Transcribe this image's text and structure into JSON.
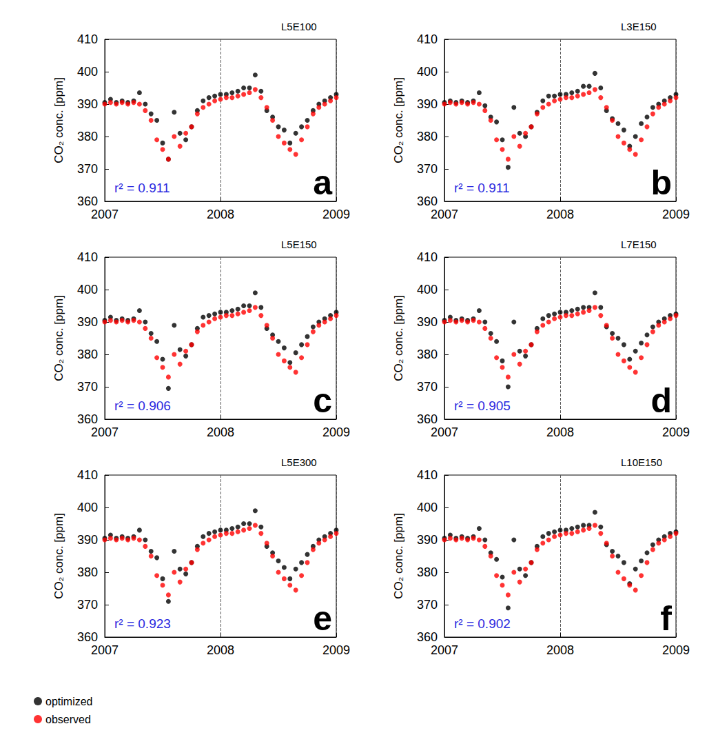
{
  "chart_data": [
    {
      "type": "scatter",
      "title": "L5E100",
      "annotations": {
        "r2": "r² = 0.911",
        "panel": "a"
      },
      "y_label": "CO₂ conc. [ppm]",
      "marker": "circle",
      "grid": "x",
      "xlim": [
        2007,
        2009
      ],
      "xticks": [
        2007,
        2008,
        2009
      ],
      "ylim": [
        360,
        410
      ],
      "yticks": [
        360,
        370,
        380,
        390,
        400,
        410
      ],
      "x": [
        2007.0,
        2007.05,
        2007.1,
        2007.15,
        2007.2,
        2007.25,
        2007.3,
        2007.35,
        2007.4,
        2007.45,
        2007.5,
        2007.55,
        2007.6,
        2007.65,
        2007.7,
        2007.75,
        2007.8,
        2007.85,
        2007.9,
        2007.95,
        2008.0,
        2008.05,
        2008.1,
        2008.15,
        2008.2,
        2008.25,
        2008.3,
        2008.35,
        2008.4,
        2008.45,
        2008.5,
        2008.55,
        2008.6,
        2008.65,
        2008.7,
        2008.75,
        2008.8,
        2008.85,
        2008.9,
        2008.95,
        2009.0
      ],
      "series": [
        {
          "name": "optimized",
          "color": "#000000",
          "values": [
            390.5,
            391.5,
            390.5,
            391,
            390.5,
            391,
            393.5,
            390,
            387,
            385,
            378,
            373,
            387.5,
            381,
            379,
            383,
            388,
            391,
            392,
            392.5,
            393,
            393,
            393.5,
            394,
            395,
            395,
            399,
            394,
            388,
            386,
            383,
            382,
            378,
            381,
            383,
            385,
            388,
            390,
            391,
            392,
            393
          ]
        },
        {
          "name": "observed",
          "color": "#ff0000",
          "values": [
            390,
            390.5,
            390,
            390.5,
            390,
            390.5,
            390,
            388,
            385,
            379,
            376,
            373,
            380,
            377,
            381,
            383,
            387,
            389,
            390,
            391,
            391.5,
            392,
            392,
            392.5,
            393,
            393.5,
            394.5,
            392,
            389,
            385,
            380,
            378,
            376,
            374.5,
            379,
            383,
            387,
            389,
            390,
            391,
            392
          ]
        }
      ]
    },
    {
      "type": "scatter",
      "title": "L3E150",
      "annotations": {
        "r2": "r² = 0.911",
        "panel": "b"
      },
      "y_label": "CO₂ conc. [ppm]",
      "marker": "circle",
      "grid": "x",
      "xlim": [
        2007,
        2009
      ],
      "xticks": [
        2007,
        2008,
        2009
      ],
      "ylim": [
        360,
        410
      ],
      "yticks": [
        360,
        370,
        380,
        390,
        400,
        410
      ],
      "x": [
        2007.0,
        2007.05,
        2007.1,
        2007.15,
        2007.2,
        2007.25,
        2007.3,
        2007.35,
        2007.4,
        2007.45,
        2007.5,
        2007.55,
        2007.6,
        2007.65,
        2007.7,
        2007.75,
        2007.8,
        2007.85,
        2007.9,
        2007.95,
        2008.0,
        2008.05,
        2008.1,
        2008.15,
        2008.2,
        2008.25,
        2008.3,
        2008.35,
        2008.4,
        2008.45,
        2008.5,
        2008.55,
        2008.6,
        2008.65,
        2008.7,
        2008.75,
        2008.8,
        2008.85,
        2008.9,
        2008.95,
        2009.0
      ],
      "series": [
        {
          "name": "optimized",
          "color": "#000000",
          "values": [
            390.5,
            391,
            390.5,
            391,
            390.5,
            391,
            393.5,
            389.5,
            386,
            384.5,
            379,
            370.5,
            389,
            381,
            380,
            383,
            387.5,
            391,
            392.5,
            392.5,
            393,
            393,
            393.5,
            394,
            395.5,
            395.5,
            399.5,
            395,
            388,
            385.5,
            384,
            382,
            377,
            380,
            384,
            386,
            389,
            390,
            391,
            392,
            393
          ]
        },
        {
          "name": "observed",
          "color": "#ff0000",
          "values": [
            390,
            390.5,
            390,
            390.5,
            390,
            390.5,
            390,
            388,
            385,
            379,
            376,
            373,
            380,
            377,
            381,
            383,
            387,
            389,
            390,
            391,
            391.5,
            392,
            392,
            392.5,
            393,
            393.5,
            394.5,
            392,
            389,
            385,
            380,
            378,
            376,
            374.5,
            379,
            383,
            387,
            389,
            390,
            391,
            392
          ]
        }
      ]
    },
    {
      "type": "scatter",
      "title": "L5E150",
      "annotations": {
        "r2": "r² = 0.906",
        "panel": "c"
      },
      "y_label": "CO₂ conc. [ppm]",
      "marker": "circle",
      "grid": "x",
      "xlim": [
        2007,
        2009
      ],
      "xticks": [
        2007,
        2008,
        2009
      ],
      "ylim": [
        360,
        410
      ],
      "yticks": [
        360,
        370,
        380,
        390,
        400,
        410
      ],
      "x": [
        2007.0,
        2007.05,
        2007.1,
        2007.15,
        2007.2,
        2007.25,
        2007.3,
        2007.35,
        2007.4,
        2007.45,
        2007.5,
        2007.55,
        2007.6,
        2007.65,
        2007.7,
        2007.75,
        2007.8,
        2007.85,
        2007.9,
        2007.95,
        2008.0,
        2008.05,
        2008.1,
        2008.15,
        2008.2,
        2008.25,
        2008.3,
        2008.35,
        2008.4,
        2008.45,
        2008.5,
        2008.55,
        2008.6,
        2008.65,
        2008.7,
        2008.75,
        2008.8,
        2008.85,
        2008.9,
        2008.95,
        2009.0
      ],
      "series": [
        {
          "name": "optimized",
          "color": "#000000",
          "values": [
            390.5,
            391.5,
            390.5,
            391,
            390.5,
            391,
            393.5,
            390,
            386.5,
            384,
            378.5,
            369.5,
            389,
            381.5,
            379.5,
            383,
            388,
            391.5,
            392,
            392.5,
            393,
            393,
            393.5,
            394,
            395,
            395,
            399,
            394.5,
            388,
            386,
            384,
            382,
            377.5,
            380.5,
            383,
            385.5,
            388.5,
            390,
            391,
            392,
            393
          ]
        },
        {
          "name": "observed",
          "color": "#ff0000",
          "values": [
            390,
            390.5,
            390,
            390.5,
            390,
            390.5,
            390,
            388,
            385,
            379,
            376,
            373,
            380,
            377,
            381,
            383,
            387,
            389,
            390,
            391,
            391.5,
            392,
            392,
            392.5,
            393,
            393.5,
            394.5,
            392,
            389,
            385,
            380,
            378,
            376,
            374.5,
            379,
            383,
            387,
            389,
            390,
            391,
            392
          ]
        }
      ]
    },
    {
      "type": "scatter",
      "title": "L7E150",
      "annotations": {
        "r2": "r² = 0.905",
        "panel": "d"
      },
      "y_label": "CO₂ conc. [ppm]",
      "marker": "circle",
      "grid": "x",
      "xlim": [
        2007,
        2009
      ],
      "xticks": [
        2007,
        2008,
        2009
      ],
      "ylim": [
        360,
        410
      ],
      "yticks": [
        360,
        370,
        380,
        390,
        400,
        410
      ],
      "x": [
        2007.0,
        2007.05,
        2007.1,
        2007.15,
        2007.2,
        2007.25,
        2007.3,
        2007.35,
        2007.4,
        2007.45,
        2007.5,
        2007.55,
        2007.6,
        2007.65,
        2007.7,
        2007.75,
        2007.8,
        2007.85,
        2007.9,
        2007.95,
        2008.0,
        2008.05,
        2008.1,
        2008.15,
        2008.2,
        2008.25,
        2008.3,
        2008.35,
        2008.4,
        2008.45,
        2008.5,
        2008.55,
        2008.6,
        2008.65,
        2008.7,
        2008.75,
        2008.8,
        2008.85,
        2008.9,
        2008.95,
        2009.0
      ],
      "series": [
        {
          "name": "optimized",
          "color": "#000000",
          "values": [
            390.5,
            391.5,
            390.5,
            391,
            390.5,
            391,
            393.5,
            390,
            386.5,
            384,
            378,
            370,
            390,
            381,
            379.5,
            383,
            388,
            391,
            392,
            392.5,
            393,
            393,
            393.5,
            394,
            394.5,
            394.5,
            399,
            394.5,
            388.5,
            386.5,
            385,
            383,
            378.5,
            381,
            383.5,
            386,
            388.5,
            390,
            391,
            392,
            392.5
          ]
        },
        {
          "name": "observed",
          "color": "#ff0000",
          "values": [
            390,
            390.5,
            390,
            390.5,
            390,
            390.5,
            390,
            388,
            385,
            379,
            376,
            373,
            380,
            377,
            381,
            383,
            387,
            389,
            390,
            391,
            391.5,
            392,
            392,
            392.5,
            393,
            393.5,
            394.5,
            392,
            389,
            385,
            380,
            378,
            376,
            374.5,
            379,
            383,
            387,
            389,
            390,
            391,
            392
          ]
        }
      ]
    },
    {
      "type": "scatter",
      "title": "L5E300",
      "annotations": {
        "r2": "r² = 0.923",
        "panel": "e"
      },
      "y_label": "CO₂ conc. [ppm]",
      "marker": "circle",
      "grid": "x",
      "xlim": [
        2007,
        2009
      ],
      "xticks": [
        2007,
        2008,
        2009
      ],
      "ylim": [
        360,
        410
      ],
      "yticks": [
        360,
        370,
        380,
        390,
        400,
        410
      ],
      "x": [
        2007.0,
        2007.05,
        2007.1,
        2007.15,
        2007.2,
        2007.25,
        2007.3,
        2007.35,
        2007.4,
        2007.45,
        2007.5,
        2007.55,
        2007.6,
        2007.65,
        2007.7,
        2007.75,
        2007.8,
        2007.85,
        2007.9,
        2007.95,
        2008.0,
        2008.05,
        2008.1,
        2008.15,
        2008.2,
        2008.25,
        2008.3,
        2008.35,
        2008.4,
        2008.45,
        2008.5,
        2008.55,
        2008.6,
        2008.65,
        2008.7,
        2008.75,
        2008.8,
        2008.85,
        2008.9,
        2008.95,
        2009.0
      ],
      "series": [
        {
          "name": "optimized",
          "color": "#000000",
          "values": [
            390.5,
            391.5,
            390.5,
            391,
            390.5,
            391,
            393,
            390,
            386.5,
            384.5,
            378,
            371,
            386.5,
            381,
            379.5,
            383,
            388,
            391,
            392,
            392.5,
            393,
            393,
            393.5,
            394,
            395,
            395,
            399,
            394,
            388,
            386,
            383.5,
            381.5,
            378,
            381,
            383,
            385.5,
            388,
            390,
            391,
            392,
            393
          ]
        },
        {
          "name": "observed",
          "color": "#ff0000",
          "values": [
            390,
            390.5,
            390,
            390.5,
            390,
            390.5,
            390,
            388,
            385,
            379,
            376,
            373,
            380,
            377,
            381,
            383,
            387,
            389,
            390,
            391,
            391.5,
            392,
            392,
            392.5,
            393,
            393.5,
            394.5,
            392,
            389,
            385,
            380,
            378,
            376,
            374.5,
            379,
            383,
            387,
            389,
            390,
            391,
            392
          ]
        }
      ]
    },
    {
      "type": "scatter",
      "title": "L10E150",
      "annotations": {
        "r2": "r² = 0.902",
        "panel": "f"
      },
      "y_label": "CO₂ conc. [ppm]",
      "marker": "circle",
      "grid": "x",
      "xlim": [
        2007,
        2009
      ],
      "xticks": [
        2007,
        2008,
        2009
      ],
      "ylim": [
        360,
        410
      ],
      "yticks": [
        360,
        370,
        380,
        390,
        400,
        410
      ],
      "x": [
        2007.0,
        2007.05,
        2007.1,
        2007.15,
        2007.2,
        2007.25,
        2007.3,
        2007.35,
        2007.4,
        2007.45,
        2007.5,
        2007.55,
        2007.6,
        2007.65,
        2007.7,
        2007.75,
        2007.8,
        2007.85,
        2007.9,
        2007.95,
        2008.0,
        2008.05,
        2008.1,
        2008.15,
        2008.2,
        2008.25,
        2008.3,
        2008.35,
        2008.4,
        2008.45,
        2008.5,
        2008.55,
        2008.6,
        2008.65,
        2008.7,
        2008.75,
        2008.8,
        2008.85,
        2008.9,
        2008.95,
        2009.0
      ],
      "series": [
        {
          "name": "optimized",
          "color": "#000000",
          "values": [
            390.5,
            391.5,
            390.5,
            391,
            390.5,
            391,
            393.5,
            390,
            386,
            384,
            378.5,
            369,
            390,
            381,
            379,
            383,
            388,
            391,
            392,
            392.5,
            393,
            393,
            393.5,
            394,
            394.5,
            394.5,
            398.5,
            394,
            388.5,
            386.5,
            385,
            383,
            376.5,
            381,
            383.5,
            386,
            388.5,
            390,
            391,
            392,
            392.5
          ]
        },
        {
          "name": "observed",
          "color": "#ff0000",
          "values": [
            390,
            390.5,
            390,
            390.5,
            390,
            390.5,
            390,
            388,
            385,
            379,
            376,
            373,
            380,
            377,
            381,
            383,
            387,
            389,
            390,
            391,
            391.5,
            392,
            392,
            392.5,
            393,
            393.5,
            394.5,
            392,
            389,
            385,
            380,
            378,
            376,
            374.5,
            379,
            383,
            387,
            389,
            390,
            391,
            392
          ]
        }
      ]
    }
  ]
}
